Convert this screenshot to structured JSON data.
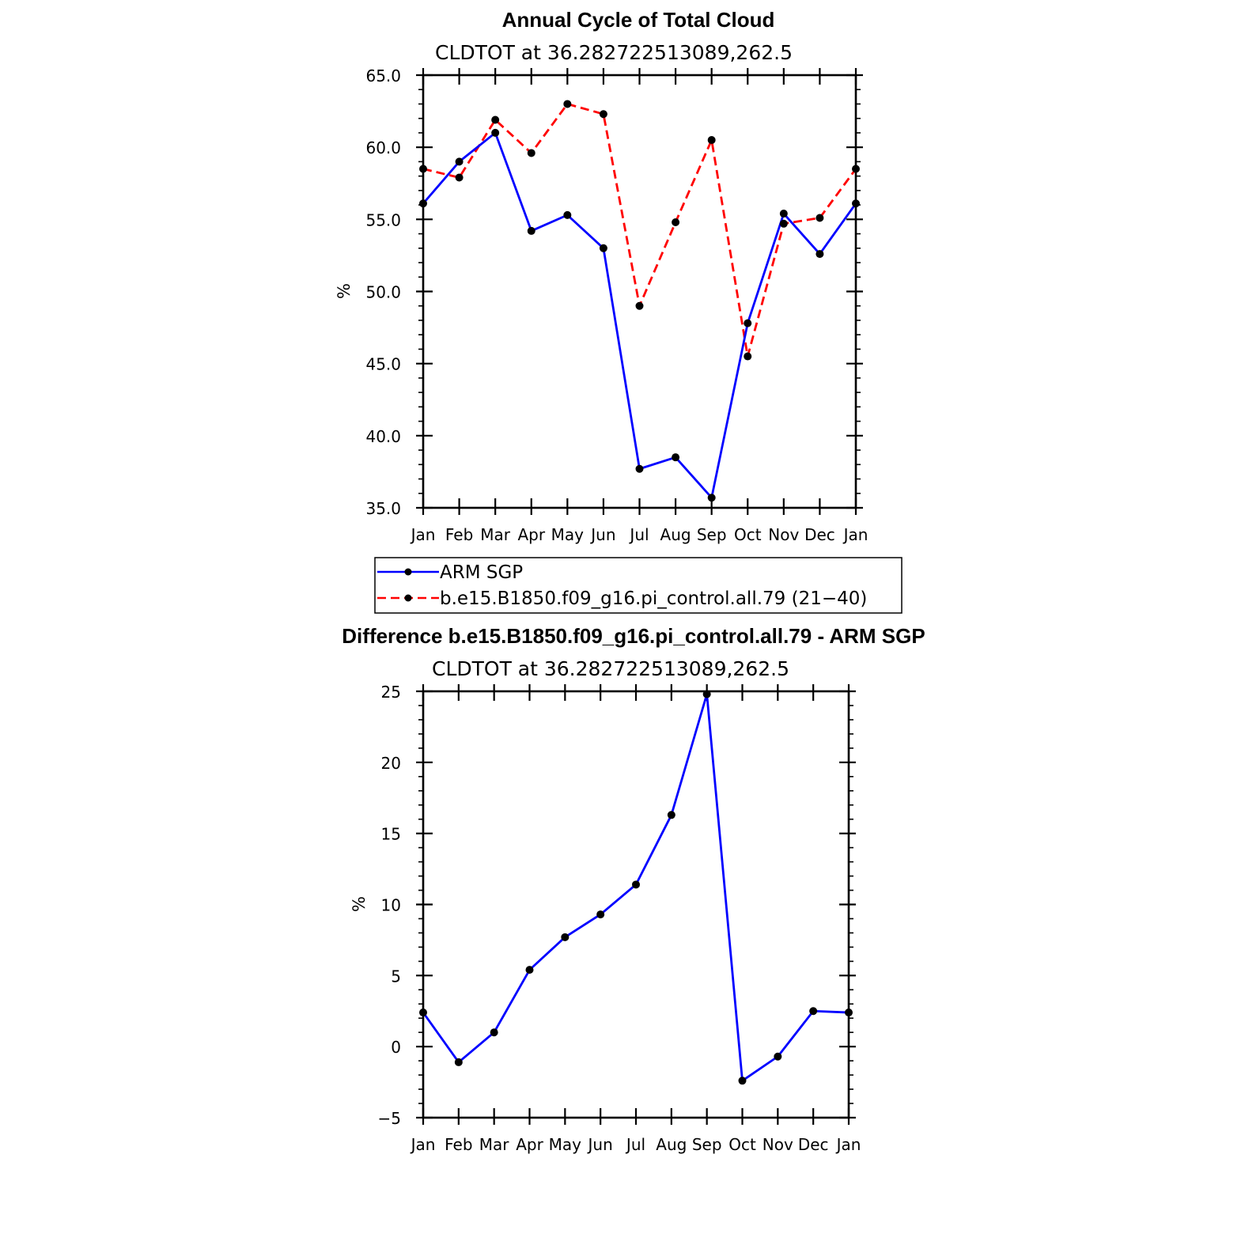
{
  "chart_data": [
    {
      "type": "line",
      "title": "Annual Cycle of Total Cloud",
      "subtitle": "CLDTOT at 36.282722513089,262.5",
      "xlabel": "",
      "ylabel": "%",
      "categories": [
        "Jan",
        "Feb",
        "Mar",
        "Apr",
        "May",
        "Jun",
        "Jul",
        "Aug",
        "Sep",
        "Oct",
        "Nov",
        "Dec",
        "Jan"
      ],
      "ylim": [
        35.0,
        65.0
      ],
      "yticks": [
        "35.0",
        "40.0",
        "45.0",
        "50.0",
        "55.0",
        "60.0",
        "65.0"
      ],
      "ytick_values": [
        35,
        40,
        45,
        50,
        55,
        60,
        65
      ],
      "legend": "bottom",
      "series": [
        {
          "name": "ARM SGP",
          "color": "#0000ff",
          "style": "solid",
          "values": [
            56.1,
            59.0,
            61.0,
            54.2,
            55.3,
            53.0,
            37.7,
            38.5,
            35.7,
            47.8,
            55.4,
            52.6,
            56.1
          ]
        },
        {
          "name": "b.e15.B1850.f09_g16.pi_control.all.79 (21−40)",
          "color": "#ff0000",
          "style": "dashed",
          "values": [
            58.5,
            57.9,
            61.9,
            59.6,
            63.0,
            62.3,
            49.0,
            54.8,
            60.5,
            45.5,
            54.7,
            55.1,
            58.5
          ]
        }
      ]
    },
    {
      "type": "line",
      "title": "Difference b.e15.B1850.f09_g16.pi_control.all.79 - ARM SGP",
      "subtitle": "CLDTOT at 36.282722513089,262.5",
      "xlabel": "",
      "ylabel": "%",
      "categories": [
        "Jan",
        "Feb",
        "Mar",
        "Apr",
        "May",
        "Jun",
        "Jul",
        "Aug",
        "Sep",
        "Oct",
        "Nov",
        "Dec",
        "Jan"
      ],
      "ylim": [
        -5,
        25
      ],
      "yticks": [
        "−5",
        "0",
        "5",
        "10",
        "15",
        "20",
        "25"
      ],
      "ytick_values": [
        -5,
        0,
        5,
        10,
        15,
        20,
        25
      ],
      "series": [
        {
          "name": "difference",
          "color": "#0000ff",
          "style": "solid",
          "values": [
            2.4,
            -1.1,
            1.0,
            5.4,
            7.7,
            9.3,
            11.4,
            16.3,
            24.8,
            -2.4,
            -0.7,
            2.5,
            2.4
          ]
        }
      ]
    }
  ]
}
